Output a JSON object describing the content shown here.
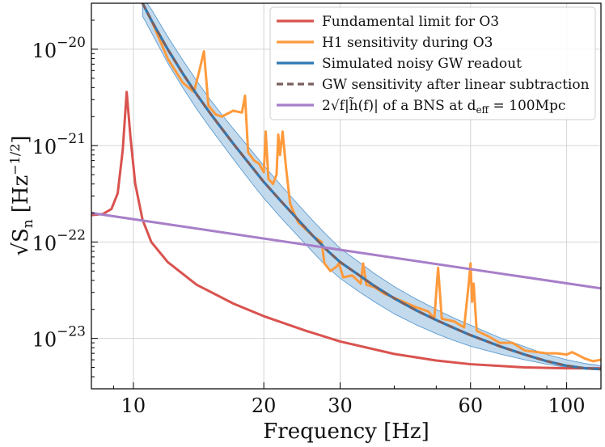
{
  "chart_data": {
    "type": "line",
    "xscale": "log",
    "yscale": "log",
    "xlim": [
      8,
      120
    ],
    "ylim": [
      3e-24,
      3e-20
    ],
    "xlabel": "Frequency [Hz]",
    "ylabel": "√S_n [Hz^−1/2]",
    "ylabel_main": "√S",
    "ylabel_sub": "n",
    "ylabel_unit": "[Hz",
    "ylabel_exp": "−1/2",
    "ylabel_close": "]",
    "x_ticks": [
      {
        "value": 10,
        "label": "10"
      },
      {
        "value": 20,
        "label": "20"
      },
      {
        "value": 30,
        "label": "30"
      },
      {
        "value": 60,
        "label": "60"
      },
      {
        "value": 100,
        "label": "100"
      }
    ],
    "y_ticks": [
      {
        "value": 1e-23,
        "base": "10",
        "exp": "−23"
      },
      {
        "value": 1e-22,
        "base": "10",
        "exp": "−22"
      },
      {
        "value": 1e-21,
        "base": "10",
        "exp": "−21"
      },
      {
        "value": 1e-20,
        "base": "10",
        "exp": "−20"
      }
    ],
    "legend_position": "top-right",
    "series": [
      {
        "name": "Fundamental limit for O3",
        "color": "#d9534f",
        "style": "solid",
        "points": [
          [
            8,
            1.9e-22
          ],
          [
            8.5,
            1.95e-22
          ],
          [
            8.9,
            2.2e-22
          ],
          [
            9.2,
            3.2e-22
          ],
          [
            9.45,
            9e-22
          ],
          [
            9.65,
            3.6e-21
          ],
          [
            9.85,
            1.2e-21
          ],
          [
            10.1,
            4e-22
          ],
          [
            10.5,
            1.7e-22
          ],
          [
            11,
            1e-22
          ],
          [
            12,
            6.2e-23
          ],
          [
            14,
            3.6e-23
          ],
          [
            17,
            2.3e-23
          ],
          [
            20,
            1.7e-23
          ],
          [
            25,
            1.2e-23
          ],
          [
            30,
            9.3e-24
          ],
          [
            40,
            6.9e-24
          ],
          [
            50,
            5.9e-24
          ],
          [
            60,
            5.4e-24
          ],
          [
            80,
            5e-24
          ],
          [
            100,
            4.9e-24
          ],
          [
            120,
            4.9e-24
          ]
        ]
      },
      {
        "name": "H1 sensitivity during O3",
        "color": "#ff9a3c",
        "style": "solid",
        "points": [
          [
            10.5,
            3e-20
          ],
          [
            11,
            2e-20
          ],
          [
            12,
            8e-21
          ],
          [
            13,
            4.5e-21
          ],
          [
            13.8,
            3.6e-21
          ],
          [
            14.2,
            6e-21
          ],
          [
            14.55,
            9.5e-21
          ],
          [
            14.9,
            2.6e-21
          ],
          [
            15.5,
            2.1e-21
          ],
          [
            16,
            2e-21
          ],
          [
            17,
            2.3e-21
          ],
          [
            17.8,
            2.2e-21
          ],
          [
            18.1,
            3.3e-21
          ],
          [
            18.4,
            8.5e-22
          ],
          [
            19,
            7e-22
          ],
          [
            19.5,
            6.5e-22
          ],
          [
            20,
            5.3e-22
          ],
          [
            20.2,
            1.4e-21
          ],
          [
            20.5,
            4.5e-22
          ],
          [
            21,
            4e-22
          ],
          [
            21.4,
            5e-22
          ],
          [
            21.6,
            1.3e-21
          ],
          [
            21.8,
            8e-22
          ],
          [
            22.1,
            1.4e-21
          ],
          [
            22.5,
            6e-22
          ],
          [
            23,
            2.5e-22
          ],
          [
            24,
            1.6e-22
          ],
          [
            26,
            1.15e-22
          ],
          [
            27.2,
            1e-22
          ],
          [
            27.6,
            6e-23
          ],
          [
            28.5,
            5e-23
          ],
          [
            29.5,
            5.6e-23
          ],
          [
            29.8,
            6e-23
          ],
          [
            30.5,
            4.3e-23
          ],
          [
            32,
            4.5e-23
          ],
          [
            33.5,
            3.7e-23
          ],
          [
            33.9,
            6e-23
          ],
          [
            34.5,
            3.6e-23
          ],
          [
            36,
            3.4e-23
          ],
          [
            38,
            2.9e-23
          ],
          [
            42,
            2.4e-23
          ],
          [
            45,
            2.1e-23
          ],
          [
            48,
            1.9e-23
          ],
          [
            49.5,
            1.6e-23
          ],
          [
            50.5,
            5.4e-23
          ],
          [
            51.5,
            1.6e-23
          ],
          [
            55,
            1.5e-23
          ],
          [
            58,
            1.3e-23
          ],
          [
            59.5,
            3.9e-23
          ],
          [
            60,
            6e-23
          ],
          [
            60.5,
            2.4e-23
          ],
          [
            61,
            3.7e-23
          ],
          [
            62,
            1.2e-23
          ],
          [
            66,
            1.05e-23
          ],
          [
            70,
            9e-24
          ],
          [
            75,
            9e-24
          ],
          [
            80,
            7.5e-24
          ],
          [
            90,
            7e-24
          ],
          [
            95,
            7e-24
          ],
          [
            100,
            6.8e-24
          ],
          [
            103,
            7.2e-24
          ],
          [
            110,
            6.2e-24
          ],
          [
            115,
            5.8e-24
          ],
          [
            120,
            6e-24
          ]
        ]
      },
      {
        "name": "Simulated noisy GW readout",
        "color": "#2f79b5",
        "style": "solid",
        "points": [
          [
            10.5,
            3e-20
          ],
          [
            11,
            2e-20
          ],
          [
            12,
            1e-20
          ],
          [
            13,
            5.6e-21
          ],
          [
            14,
            3.4e-21
          ],
          [
            15,
            2.2e-21
          ],
          [
            16,
            1.5e-21
          ],
          [
            17,
            1.05e-21
          ],
          [
            18,
            7.6e-22
          ],
          [
            19,
            5.6e-22
          ],
          [
            20,
            4.2e-22
          ],
          [
            22,
            2.6e-22
          ],
          [
            24,
            1.7e-22
          ],
          [
            26,
            1.15e-22
          ],
          [
            28,
            8.2e-23
          ],
          [
            30,
            6.2e-23
          ],
          [
            33,
            4.6e-23
          ],
          [
            36,
            3.5e-23
          ],
          [
            40,
            2.6e-23
          ],
          [
            45,
            1.95e-23
          ],
          [
            50,
            1.55e-23
          ],
          [
            55,
            1.28e-23
          ],
          [
            60,
            1.08e-23
          ],
          [
            70,
            8.3e-24
          ],
          [
            80,
            6.8e-24
          ],
          [
            90,
            5.8e-24
          ],
          [
            100,
            5.2e-24
          ],
          [
            110,
            4.9e-24
          ],
          [
            120,
            4.8e-24
          ]
        ]
      },
      {
        "name": "GW sensitivity after linear subtraction",
        "color": "#7a6060",
        "style": "dashed",
        "points": [
          [
            10.5,
            3e-20
          ],
          [
            11,
            2e-20
          ],
          [
            12,
            1e-20
          ],
          [
            13,
            5.6e-21
          ],
          [
            14,
            3.4e-21
          ],
          [
            15,
            2.2e-21
          ],
          [
            16,
            1.5e-21
          ],
          [
            17,
            1.05e-21
          ],
          [
            18,
            7.6e-22
          ],
          [
            19,
            5.6e-22
          ],
          [
            20,
            4.2e-22
          ],
          [
            22,
            2.6e-22
          ],
          [
            24,
            1.7e-22
          ],
          [
            26,
            1.15e-22
          ],
          [
            28,
            8.2e-23
          ],
          [
            30,
            6.2e-23
          ],
          [
            33,
            4.6e-23
          ],
          [
            36,
            3.5e-23
          ],
          [
            40,
            2.6e-23
          ],
          [
            45,
            1.95e-23
          ],
          [
            50,
            1.55e-23
          ],
          [
            55,
            1.28e-23
          ],
          [
            60,
            1.08e-23
          ],
          [
            70,
            8.3e-24
          ],
          [
            80,
            6.8e-24
          ],
          [
            90,
            5.8e-24
          ],
          [
            100,
            5.2e-24
          ],
          [
            110,
            4.9e-24
          ],
          [
            120,
            4.8e-24
          ]
        ]
      },
      {
        "name": "2√f|h̃(f)| of a BNS at d_eff = 100Mpc",
        "color": "#a77fc9",
        "style": "solid",
        "points": [
          [
            8,
            2e-22
          ],
          [
            120,
            3.3e-23
          ]
        ]
      }
    ],
    "band": {
      "color": "#b8d4ea",
      "stroke": "#5b9bd0",
      "x": [
        10.5,
        11,
        12,
        13,
        14,
        15,
        16,
        17,
        18,
        19,
        20,
        22,
        24,
        26,
        28,
        30,
        33,
        36,
        40,
        45,
        50,
        55,
        60,
        70,
        80,
        90,
        100,
        110,
        120
      ],
      "lower": [
        2.2e-20,
        1.5e-20,
        7.2e-21,
        4e-21,
        2.4e-21,
        1.55e-21,
        1.05e-21,
        7.3e-22,
        5.2e-22,
        3.8e-22,
        2.85e-22,
        1.75e-22,
        1.15e-22,
        7.8e-23,
        5.5e-23,
        4.2e-23,
        3.1e-23,
        2.4e-23,
        1.8e-23,
        1.38e-23,
        1.12e-23,
        9.5e-24,
        8.3e-24,
        6.9e-24,
        6e-24,
        5.4e-24,
        5e-24,
        4.8e-24,
        4.7e-24
      ],
      "upper": [
        3.5e-20,
        2.6e-20,
        1.35e-20,
        7.7e-21,
        4.7e-21,
        3.05e-21,
        2.1e-21,
        1.5e-21,
        1.1e-21,
        8.2e-22,
        6.2e-22,
        3.8e-22,
        2.45e-22,
        1.65e-22,
        1.17e-22,
        8.6e-23,
        6.3e-23,
        4.7e-23,
        3.45e-23,
        2.55e-23,
        2e-23,
        1.62e-23,
        1.37e-23,
        1.02e-23,
        8.2e-24,
        6.8e-24,
        6e-24,
        5.5e-24,
        5.2e-24
      ]
    },
    "legend": [
      {
        "label": "Fundamental limit for O3",
        "color": "#d9534f",
        "style": "solid"
      },
      {
        "label": "H1 sensitivity during O3",
        "color": "#ff9a3c",
        "style": "solid"
      },
      {
        "label": "Simulated noisy GW readout",
        "color": "#2f79b5",
        "style": "solid"
      },
      {
        "label": "GW sensitivity after linear subtraction",
        "color": "#7a6060",
        "style": "dashed"
      },
      {
        "label": "2√f|h̃(f)| of a BNS at d",
        "label_sub": "eff",
        "label_rest": " = 100Mpc",
        "color": "#a77fc9",
        "style": "solid"
      }
    ]
  }
}
